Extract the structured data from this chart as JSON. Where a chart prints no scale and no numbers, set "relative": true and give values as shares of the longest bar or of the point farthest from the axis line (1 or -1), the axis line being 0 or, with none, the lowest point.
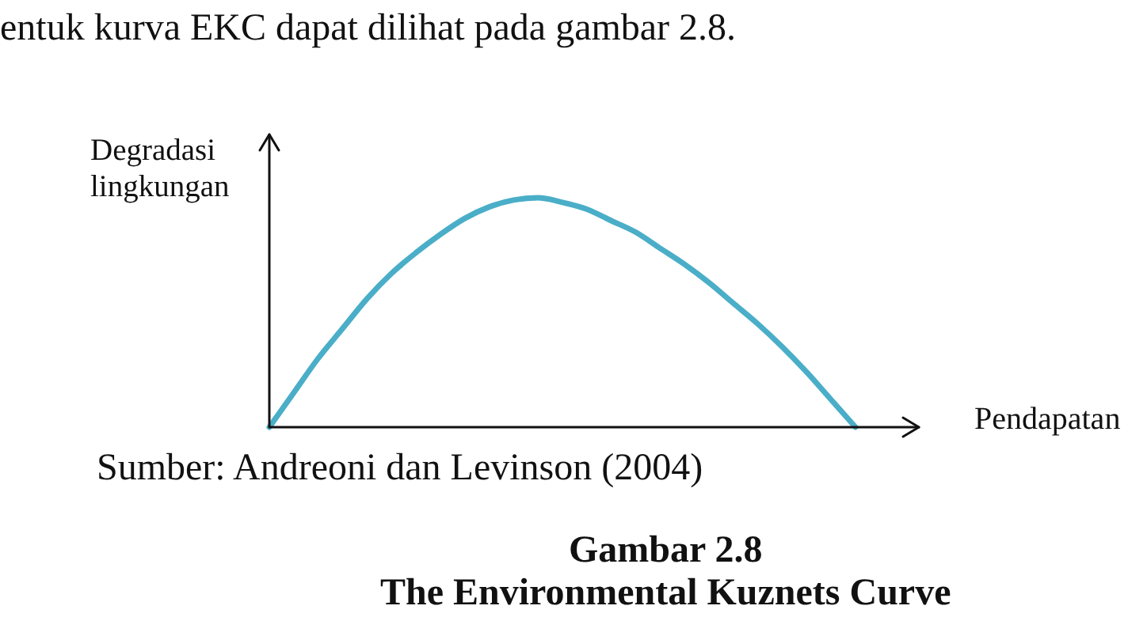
{
  "chart_data": {
    "type": "line",
    "relative": true,
    "title": "Gambar 2.8",
    "subtitle": "The Environmental Kuznets Curve",
    "xlabel": "Pendapatan",
    "ylabel": "Degradasi lingkungan",
    "annotations": [
      "entuk kurva EKC dapat dilihat pada gambar 2.8.",
      "Sumber: Andreoni dan Levinson (2004)"
    ],
    "categories": [
      null,
      null,
      null,
      null,
      null,
      null,
      null,
      null,
      null,
      null,
      null,
      null,
      null,
      null,
      null,
      null,
      null,
      null,
      null,
      null,
      null,
      null,
      null,
      null,
      null
    ],
    "values": [
      0,
      0.15,
      0.3,
      0.43,
      0.56,
      0.67,
      0.76,
      0.84,
      0.91,
      0.96,
      0.99,
      1,
      0.98,
      0.95,
      0.9,
      0.85,
      0.78,
      0.71,
      0.63,
      0.54,
      0.45,
      0.35,
      0.24,
      0.12,
      0
    ],
    "color": "#4aaec8",
    "marker": "none"
  }
}
